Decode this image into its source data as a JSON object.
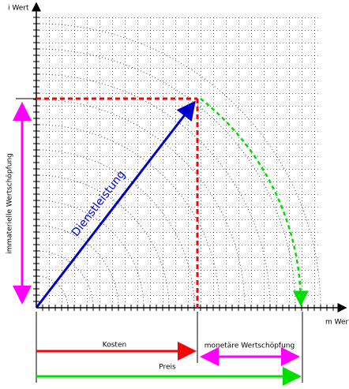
{
  "axes": {
    "y_label": "i Wert",
    "x_label": "m Wert"
  },
  "vector": {
    "label": "Dienstleistung"
  },
  "left_arrow": {
    "label": "immaterielle Wertschöpfung"
  },
  "bottom": {
    "cost": "Kosten",
    "monetary": "monetäre Wertschöpfung",
    "price": "Preis"
  }
}
